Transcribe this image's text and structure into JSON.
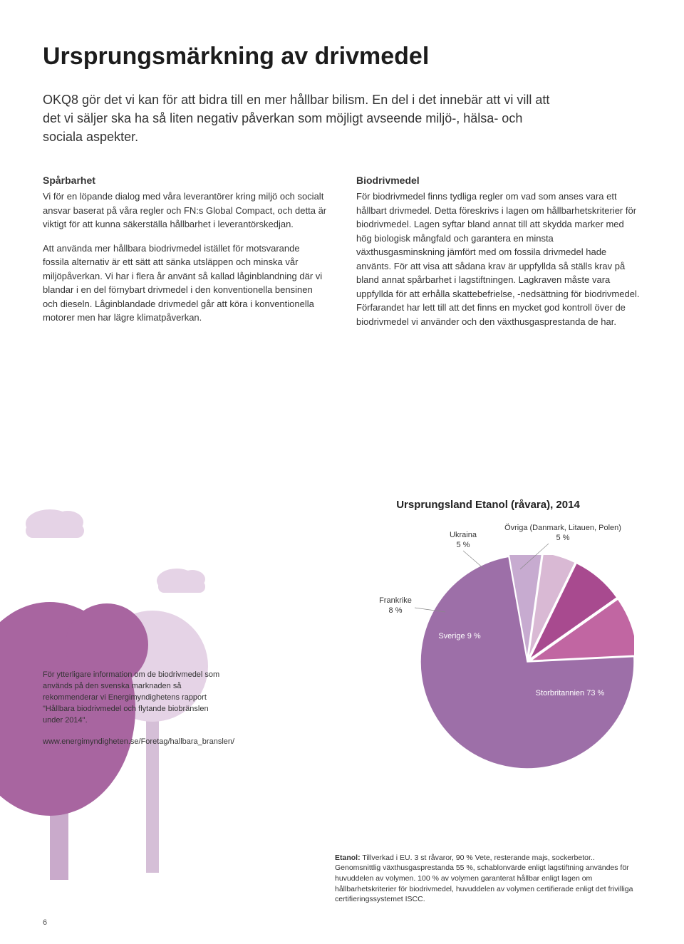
{
  "page": {
    "title": "Ursprungsmärkning av drivmedel",
    "intro": "OKQ8 gör det vi kan för att bidra till en mer hållbar bilism. En del i det innebär att vi vill att det vi säljer ska ha så liten negativ påverkan som möjligt avseende miljö-, hälsa- och sociala aspekter.",
    "page_number": "6"
  },
  "left": {
    "h": "Spårbarhet",
    "p1": "Vi för en löpande dialog med våra leverantörer kring miljö och socialt ansvar baserat på våra regler och FN:s Global Compact, och detta är viktigt för att kunna säkerställa hållbarhet i leverantörskedjan.",
    "p2": "Att använda mer hållbara biodrivmedel istället för motsvarande fossila alternativ är ett sätt att sänka utsläppen och minska vår miljöpåverkan. Vi har i flera år använt så kallad låginblandning där vi blandar i en del förnybart drivmedel i den konventionella bensinen och dieseln. Låginblandade drivmedel går att köra i konventionella motorer men har lägre klimatpåverkan."
  },
  "right": {
    "h": "Biodrivmedel",
    "p1": "För biodrivmedel finns tydliga regler om vad som anses vara ett hållbart drivmedel. Detta föreskrivs i lagen om hållbarhetskriterier för biodrivmedel. Lagen syftar bland annat till att skydda marker med hög biologisk mångfald och garantera en minsta växthusgasminskning jämfört med om fossila drivmedel hade använts. För att visa att sådana krav är uppfyllda så ställs krav på bland annat spårbarhet i lagstiftningen. Lagkraven måste vara uppfyllda för att erhålla skattebefrielse, -nedsättning för biodrivmedel. Förfarandet har lett till att det finns en mycket god kontroll över de biodrivmedel vi använder och den växthusgasprestanda de har."
  },
  "chart": {
    "type": "pie",
    "title": "Ursprungsland Etanol (råvara), 2014",
    "labels": {
      "ukraina": "Ukraina",
      "ukraina_pct": "5 %",
      "ovriga": "Övriga (Danmark, Litauen, Polen)",
      "ovriga_pct": "5 %",
      "frankrike": "Frankrike",
      "frankrike_pct": "8 %",
      "sverige": "Sverige",
      "sverige_pct": "9 %",
      "uk": "Storbritannien",
      "uk_pct": "73 %"
    },
    "slices": [
      {
        "name": "Storbritannien",
        "value": 73,
        "color": "#9d6fa8"
      },
      {
        "name": "Sverige",
        "value": 9,
        "color": "#c166a2"
      },
      {
        "name": "Frankrike",
        "value": 8,
        "color": "#a84a8f"
      },
      {
        "name": "Ukraina",
        "value": 5,
        "color": "#d9b9d4"
      },
      {
        "name": "Övriga",
        "value": 5,
        "color": "#c7abd0"
      }
    ],
    "background_color": "#ffffff"
  },
  "footnote": {
    "text": "För ytterligare information om de biodrivmedel som används på den svenska marknaden så rekommenderar vi Energimyndighetens rapport \"Hållbara biodrivmedel och flytande biobränslen under 2014\".",
    "link": "www.energimyndigheten.se/Foretag/hallbara_branslen/"
  },
  "bottomnote": {
    "bold": "Etanol:",
    "text": " Tillverkad i EU. 3 st råvaror, 90 % Vete, resterande majs, sockerbetor.. Genomsnittlig växthusgasprestanda 55 %, schablonvärde enligt lagstiftning användes för huvuddelen av volymen. 100 % av volymen garanterat hållbar enligt lagen om hållbarhetskriterier för biodrivmedel, huvuddelen av volymen certifierade enligt det frivilliga certifieringssystemet ISCC."
  },
  "illustration": {
    "tree_main_fill": "#a865a0",
    "tree_main_trunk": "#c9aacb",
    "tree_back_fill": "#e5d3e6",
    "tree_back_trunk": "#d5bfd7",
    "cloud_fill": "#e5d3e6"
  }
}
